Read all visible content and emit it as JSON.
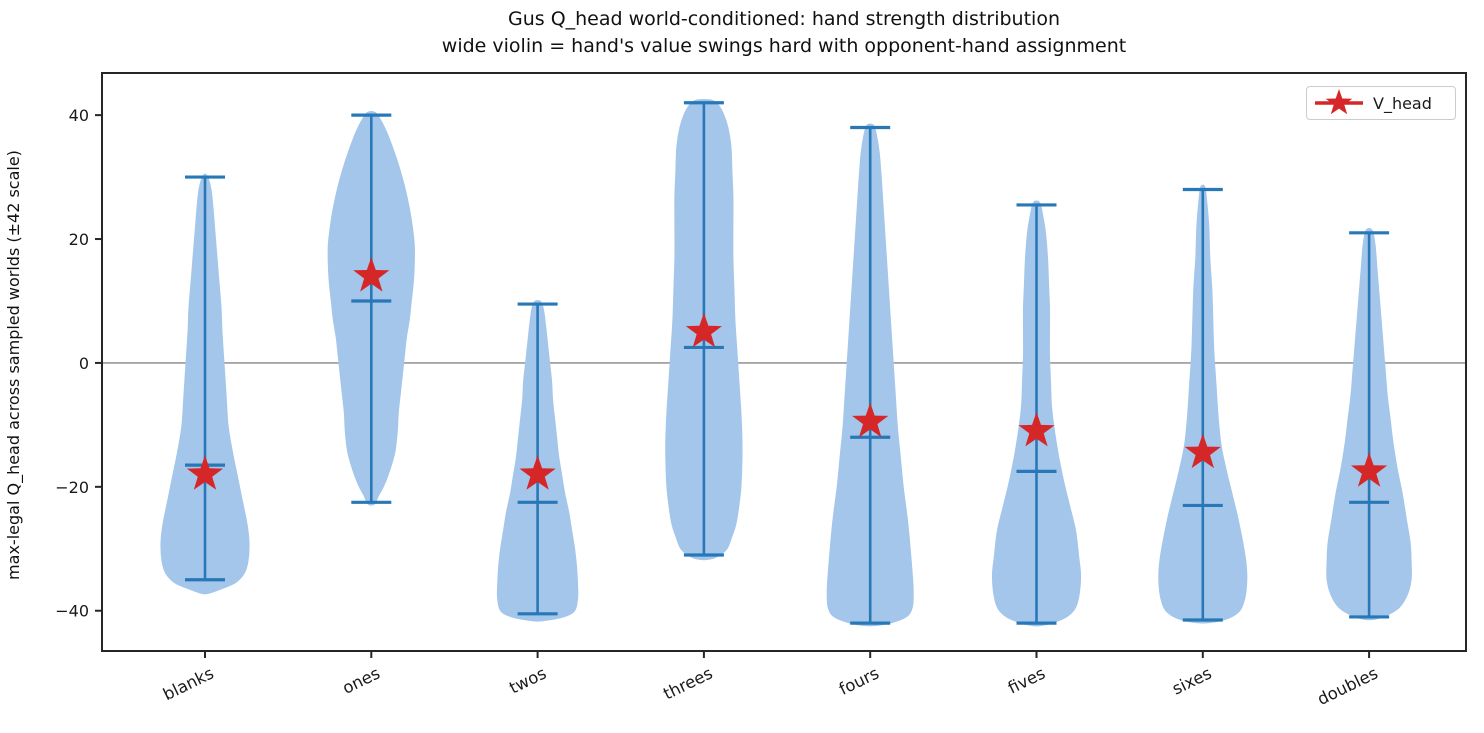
{
  "title": {
    "line1": "Gus Q_head world-conditioned: hand strength distribution",
    "line2": "wide violin = hand's value swings hard with opponent-hand assignment"
  },
  "y_axis": {
    "label": "max-legal Q_head across sampled worlds (±42 scale)",
    "tick_labels": [
      "40",
      "20",
      "0",
      "−20",
      "−40"
    ],
    "tick_values": [
      40,
      20,
      0,
      -20,
      -40
    ]
  },
  "legend": {
    "label": "V_head",
    "marker": "star"
  },
  "colors": {
    "violin_fill": "#a3c6ea",
    "violin_line": "#2878b8",
    "star": "#d62728",
    "zero_line": "#999999",
    "axis": "#262626",
    "text": "#1a1a1a"
  },
  "chart_data": {
    "type": "violin",
    "title": "Gus Q_head world-conditioned: hand strength distribution",
    "subtitle": "wide violin = hand's value swings hard with opponent-hand assignment",
    "ylabel": "max-legal Q_head across sampled worlds (±42 scale)",
    "ylim": [
      -46.5,
      46.8
    ],
    "zero_line": 0,
    "legend_series": "V_head",
    "categories": [
      "blanks",
      "ones",
      "twos",
      "threes",
      "fours",
      "fives",
      "sixes",
      "doubles"
    ],
    "series": [
      {
        "name": "blanks",
        "max": 30,
        "min": -35,
        "mean": -16.5,
        "v_head": -18,
        "profile": [
          [
            30.2,
            2
          ],
          [
            28,
            6
          ],
          [
            25,
            8
          ],
          [
            21,
            10
          ],
          [
            17,
            12
          ],
          [
            13,
            14
          ],
          [
            9,
            16
          ],
          [
            5,
            17
          ],
          [
            0,
            19
          ],
          [
            -5,
            21
          ],
          [
            -10,
            23
          ],
          [
            -14,
            27
          ],
          [
            -18,
            32
          ],
          [
            -22,
            37
          ],
          [
            -26,
            42
          ],
          [
            -29,
            44
          ],
          [
            -32,
            43
          ],
          [
            -34,
            39
          ],
          [
            -35.5,
            30
          ],
          [
            -36.6,
            14
          ],
          [
            -37.2,
            3
          ]
        ]
      },
      {
        "name": "ones",
        "max": 40,
        "min": -22.5,
        "mean": 10,
        "v_head": 14,
        "profile": [
          [
            40.4,
            4
          ],
          [
            39,
            10
          ],
          [
            37,
            16
          ],
          [
            34,
            23
          ],
          [
            31,
            29
          ],
          [
            28,
            34
          ],
          [
            25,
            38
          ],
          [
            22,
            41
          ],
          [
            19,
            43
          ],
          [
            16,
            43
          ],
          [
            13,
            42
          ],
          [
            10,
            40
          ],
          [
            7,
            38
          ],
          [
            4,
            35
          ],
          [
            1,
            33
          ],
          [
            -2,
            31
          ],
          [
            -5,
            29
          ],
          [
            -8,
            27
          ],
          [
            -11,
            26
          ],
          [
            -14,
            24
          ],
          [
            -16,
            21
          ],
          [
            -18,
            17
          ],
          [
            -20,
            12
          ],
          [
            -21.5,
            7
          ],
          [
            -22.8,
            3
          ]
        ]
      },
      {
        "name": "twos",
        "max": 9.5,
        "min": -40.5,
        "mean": -22.5,
        "v_head": -18,
        "profile": [
          [
            9.9,
            3
          ],
          [
            8.5,
            6
          ],
          [
            6,
            8
          ],
          [
            3,
            10
          ],
          [
            0,
            12
          ],
          [
            -3,
            14
          ],
          [
            -6,
            15
          ],
          [
            -9,
            17
          ],
          [
            -12,
            19
          ],
          [
            -15,
            21
          ],
          [
            -18,
            24
          ],
          [
            -21,
            27
          ],
          [
            -24,
            31
          ],
          [
            -27,
            34
          ],
          [
            -30,
            37
          ],
          [
            -33,
            39
          ],
          [
            -36,
            40
          ],
          [
            -38,
            40
          ],
          [
            -40,
            37
          ],
          [
            -41,
            26
          ],
          [
            -41.6,
            6
          ]
        ]
      },
      {
        "name": "threes",
        "max": 42,
        "min": -31,
        "mean": 2.5,
        "v_head": 5,
        "profile": [
          [
            42.4,
            8
          ],
          [
            41.5,
            15
          ],
          [
            40,
            20
          ],
          [
            38,
            24
          ],
          [
            35,
            27
          ],
          [
            31,
            28
          ],
          [
            27,
            29
          ],
          [
            22,
            29
          ],
          [
            17,
            29
          ],
          [
            12,
            30
          ],
          [
            7,
            31
          ],
          [
            2,
            33
          ],
          [
            -3,
            35
          ],
          [
            -8,
            37
          ],
          [
            -12,
            38
          ],
          [
            -16,
            38
          ],
          [
            -20,
            37
          ],
          [
            -23,
            35
          ],
          [
            -26,
            32
          ],
          [
            -28,
            28
          ],
          [
            -30,
            23
          ],
          [
            -31.2,
            14
          ],
          [
            -31.7,
            5
          ]
        ]
      },
      {
        "name": "fours",
        "max": 38,
        "min": -42,
        "mean": -12,
        "v_head": -9.5,
        "profile": [
          [
            38.4,
            3
          ],
          [
            37,
            6
          ],
          [
            34,
            9
          ],
          [
            30,
            11
          ],
          [
            25,
            13
          ],
          [
            20,
            15
          ],
          [
            15,
            17
          ],
          [
            10,
            19
          ],
          [
            5,
            21
          ],
          [
            0,
            23
          ],
          [
            -5,
            25
          ],
          [
            -10,
            27
          ],
          [
            -15,
            30
          ],
          [
            -20,
            33
          ],
          [
            -25,
            37
          ],
          [
            -30,
            40
          ],
          [
            -34,
            42
          ],
          [
            -37,
            43
          ],
          [
            -39.5,
            42
          ],
          [
            -41,
            36
          ],
          [
            -42,
            20
          ],
          [
            -42.4,
            5
          ]
        ]
      },
      {
        "name": "fives",
        "max": 25.5,
        "min": -42,
        "mean": -17.5,
        "v_head": -11,
        "profile": [
          [
            25.9,
            3
          ],
          [
            24,
            6
          ],
          [
            21,
            9
          ],
          [
            17,
            11
          ],
          [
            13,
            12
          ],
          [
            9,
            13
          ],
          [
            5,
            13
          ],
          [
            1,
            13
          ],
          [
            -3,
            14
          ],
          [
            -7,
            15
          ],
          [
            -11,
            18
          ],
          [
            -15,
            22
          ],
          [
            -19,
            27
          ],
          [
            -23,
            33
          ],
          [
            -27,
            39
          ],
          [
            -31,
            42
          ],
          [
            -34,
            44
          ],
          [
            -37,
            43
          ],
          [
            -39.5,
            39
          ],
          [
            -41,
            30
          ],
          [
            -42,
            15
          ],
          [
            -42.4,
            4
          ]
        ]
      },
      {
        "name": "sixes",
        "max": 28,
        "min": -41.5,
        "mean": -23,
        "v_head": -14.5,
        "profile": [
          [
            28.4,
            2
          ],
          [
            26,
            4
          ],
          [
            22,
            6
          ],
          [
            17,
            7
          ],
          [
            12,
            9
          ],
          [
            7,
            10
          ],
          [
            2,
            11
          ],
          [
            -3,
            13
          ],
          [
            -8,
            15
          ],
          [
            -13,
            18
          ],
          [
            -17,
            23
          ],
          [
            -21,
            29
          ],
          [
            -25,
            35
          ],
          [
            -29,
            40
          ],
          [
            -32,
            43
          ],
          [
            -35,
            44
          ],
          [
            -38,
            42
          ],
          [
            -40,
            37
          ],
          [
            -41.2,
            26
          ],
          [
            -41.9,
            8
          ]
        ]
      },
      {
        "name": "doubles",
        "max": 21,
        "min": -41,
        "mean": -22.5,
        "v_head": -17.5,
        "profile": [
          [
            21.4,
            3
          ],
          [
            19,
            6
          ],
          [
            15,
            8
          ],
          [
            11,
            10
          ],
          [
            7,
            12
          ],
          [
            3,
            14
          ],
          [
            -1,
            16
          ],
          [
            -5,
            18
          ],
          [
            -9,
            21
          ],
          [
            -13,
            24
          ],
          [
            -17,
            28
          ],
          [
            -21,
            33
          ],
          [
            -25,
            37
          ],
          [
            -29,
            41
          ],
          [
            -32,
            42
          ],
          [
            -35,
            42
          ],
          [
            -37.5,
            38
          ],
          [
            -39.5,
            30
          ],
          [
            -40.8,
            17
          ],
          [
            -41.4,
            5
          ]
        ]
      }
    ]
  }
}
